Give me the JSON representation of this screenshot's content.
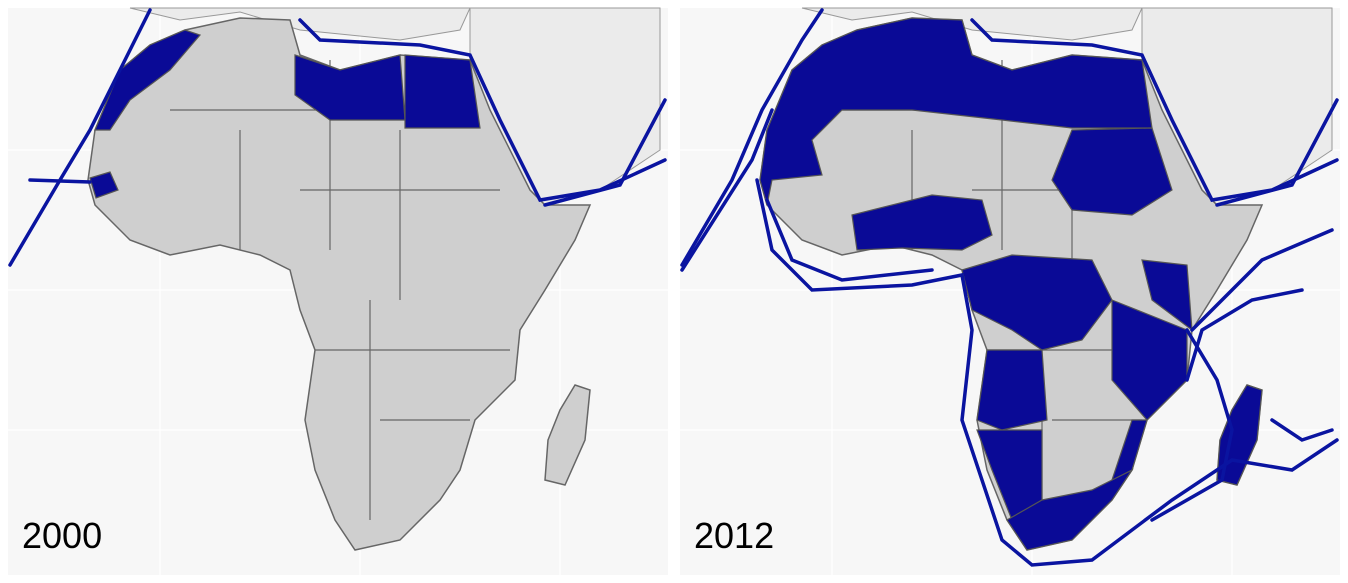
{
  "panels": [
    {
      "label": "2000"
    },
    {
      "label": "2012"
    }
  ]
}
